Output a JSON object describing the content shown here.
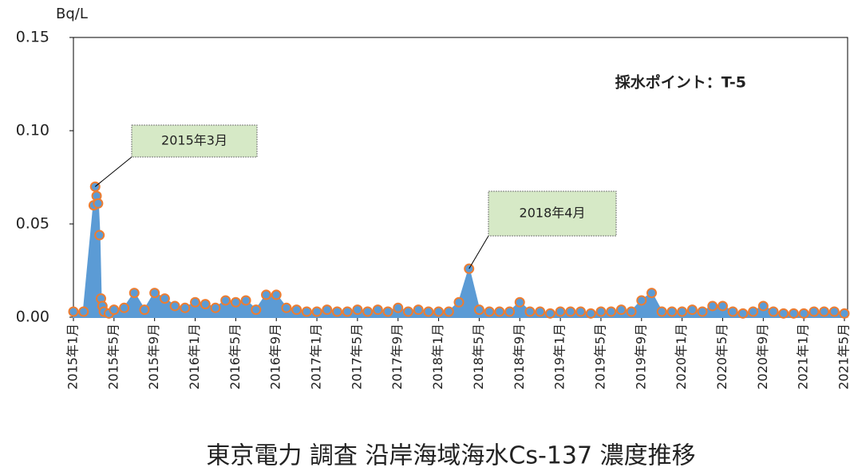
{
  "chart_data": {
    "type": "area",
    "title": "東京電力 調査 沿岸海域海水Cs-137 濃度推移",
    "y_label": "Bq/L",
    "annotations_text": "採水ポイント：T-5",
    "annotations": [
      {
        "text": "2015年3月",
        "x": "2015-03"
      },
      {
        "text": "2018年4月",
        "x": "2018-04"
      }
    ],
    "x": [
      "2015-01",
      "2015-02",
      "2015-03",
      "2015-03",
      "2015-03",
      "2015-03",
      "2015-03",
      "2015-03",
      "2015-03",
      "2015-04",
      "2015-04",
      "2015-05",
      "2015-06",
      "2015-07",
      "2015-08",
      "2015-09",
      "2015-10",
      "2015-11",
      "2015-12",
      "2016-01",
      "2016-02",
      "2016-03",
      "2016-04",
      "2016-05",
      "2016-06",
      "2016-07",
      "2016-08",
      "2016-09",
      "2016-10",
      "2016-11",
      "2016-12",
      "2017-01",
      "2017-02",
      "2017-03",
      "2017-04",
      "2017-05",
      "2017-06",
      "2017-07",
      "2017-08",
      "2017-09",
      "2017-10",
      "2017-11",
      "2017-12",
      "2018-01",
      "2018-02",
      "2018-03",
      "2018-04",
      "2018-05",
      "2018-06",
      "2018-07",
      "2018-08",
      "2018-09",
      "2018-10",
      "2018-11",
      "2018-12",
      "2019-01",
      "2019-02",
      "2019-03",
      "2019-04",
      "2019-05",
      "2019-06",
      "2019-07",
      "2019-08",
      "2019-09",
      "2019-10",
      "2019-11",
      "2019-12",
      "2020-01",
      "2020-02",
      "2020-03",
      "2020-04",
      "2020-05",
      "2020-06",
      "2020-07",
      "2020-08",
      "2020-09",
      "2020-10",
      "2020-11",
      "2020-12",
      "2021-01",
      "2021-02",
      "2021-03",
      "2021-04",
      "2021-05"
    ],
    "series": [
      {
        "name": "Cs-137",
        "color": "#5b9bd5",
        "marker_edge": "#ed7d31",
        "values": [
          0.003,
          0.003,
          0.06,
          0.07,
          0.065,
          0.061,
          0.044,
          0.01,
          0.006,
          0.003,
          0.002,
          0.004,
          0.005,
          0.013,
          0.004,
          0.013,
          0.01,
          0.006,
          0.005,
          0.008,
          0.007,
          0.005,
          0.009,
          0.008,
          0.009,
          0.004,
          0.012,
          0.012,
          0.005,
          0.004,
          0.003,
          0.003,
          0.004,
          0.003,
          0.003,
          0.004,
          0.003,
          0.004,
          0.003,
          0.005,
          0.003,
          0.004,
          0.003,
          0.003,
          0.003,
          0.008,
          0.026,
          0.004,
          0.003,
          0.003,
          0.003,
          0.008,
          0.003,
          0.003,
          0.002,
          0.003,
          0.003,
          0.003,
          0.002,
          0.003,
          0.003,
          0.004,
          0.003,
          0.009,
          0.013,
          0.003,
          0.003,
          0.003,
          0.004,
          0.003,
          0.006,
          0.006,
          0.003,
          0.002,
          0.003,
          0.006,
          0.003,
          0.002,
          0.002,
          0.002,
          0.003,
          0.003,
          0.003,
          0.002
        ]
      }
    ],
    "xlim": [
      "2015-01",
      "2021-05"
    ],
    "xticks": [
      {
        "value": "2015-01",
        "label": "2015年1月"
      },
      {
        "value": "2015-05",
        "label": "2015年5月"
      },
      {
        "value": "2015-09",
        "label": "2015年9月"
      },
      {
        "value": "2016-01",
        "label": "2016年1月"
      },
      {
        "value": "2016-05",
        "label": "2016年5月"
      },
      {
        "value": "2016-09",
        "label": "2016年9月"
      },
      {
        "value": "2017-01",
        "label": "2017年1月"
      },
      {
        "value": "2017-05",
        "label": "2017年5月"
      },
      {
        "value": "2017-09",
        "label": "2017年9月"
      },
      {
        "value": "2018-01",
        "label": "2018年1月"
      },
      {
        "value": "2018-05",
        "label": "2018年5月"
      },
      {
        "value": "2018-09",
        "label": "2018年9月"
      },
      {
        "value": "2019-01",
        "label": "2019年1月"
      },
      {
        "value": "2019-05",
        "label": "2019年5月"
      },
      {
        "value": "2019-09",
        "label": "2019年9月"
      },
      {
        "value": "2020-01",
        "label": "2020年1月"
      },
      {
        "value": "2020-05",
        "label": "2020年5月"
      },
      {
        "value": "2020-09",
        "label": "2020年9月"
      },
      {
        "value": "2021-01",
        "label": "2021年1月"
      },
      {
        "value": "2021-05",
        "label": "2021年5月"
      }
    ],
    "ylim": [
      0,
      0.15
    ],
    "yticks": [
      {
        "value": 0,
        "label": "0.00"
      },
      {
        "value": 0.05,
        "label": "0.05"
      },
      {
        "value": 0.1,
        "label": "0.10"
      },
      {
        "value": 0.15,
        "label": "0.15"
      }
    ]
  }
}
